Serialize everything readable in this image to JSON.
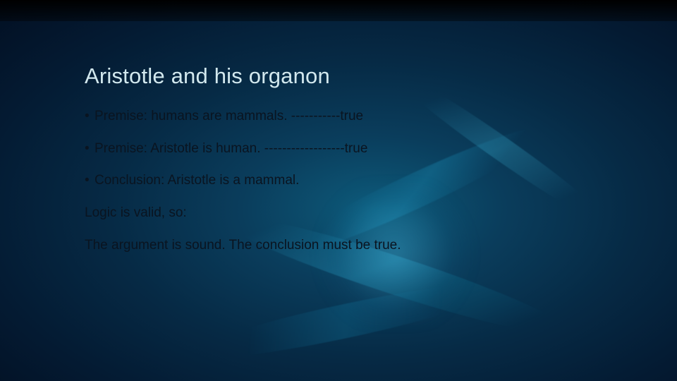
{
  "slide": {
    "title": "Aristotle and his organon",
    "bullets": [
      "Premise: humans are mammals. -----------true",
      "Premise: Aristotle is human. ------------------true",
      "Conclusion: Aristotle is a mammal."
    ],
    "lines": [
      "Logic is valid, so:",
      "The argument is sound. The conclusion must be true."
    ],
    "title_color": "#d2e8ee",
    "body_color": "#0a1420",
    "title_fontsize": 31,
    "body_fontsize": 19,
    "background_gradient": {
      "center": "#0d5a7a",
      "mid": "#062a45",
      "edge": "#020f22"
    },
    "streak_colors": [
      "#1a8fb8",
      "#2aa5cc",
      "#3db5d8",
      "#1178a0"
    ]
  }
}
